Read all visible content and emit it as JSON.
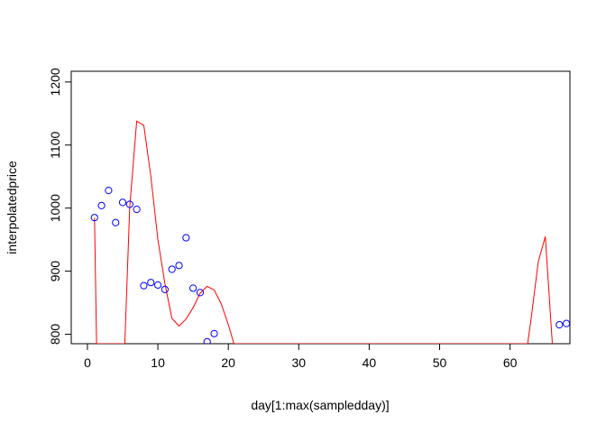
{
  "chart_data": {
    "type": "scatter",
    "xlabel": "day[1:max(sampledday)]",
    "ylabel": "interpolatedprice",
    "xlim": [
      -2.3,
      68.5
    ],
    "ylim": [
      785,
      1217
    ],
    "x_ticks": [
      0,
      10,
      20,
      30,
      40,
      50,
      60
    ],
    "y_ticks": [
      800,
      900,
      1000,
      1100,
      1200
    ],
    "grid": false,
    "points": {
      "color": "#0000ff",
      "marker": "open-circle",
      "x": [
        1,
        2,
        3,
        4,
        5,
        6,
        7,
        8,
        9,
        10,
        11,
        12,
        13,
        14,
        15,
        16,
        17,
        18,
        67,
        68
      ],
      "y": [
        985,
        1004,
        1028,
        977,
        1009,
        1006,
        998,
        877,
        882,
        878,
        871,
        903,
        909,
        953,
        873,
        866,
        788,
        801,
        815,
        817
      ]
    },
    "line": {
      "color": "#ff0000",
      "x": [
        1,
        1.3,
        5.3,
        6,
        7,
        8,
        9,
        10,
        11,
        12,
        13,
        14,
        15,
        16,
        17,
        18,
        19,
        20,
        20.8,
        62.5,
        63,
        64,
        65,
        66
      ],
      "y": [
        985,
        785,
        785,
        1000,
        1138,
        1131,
        1050,
        950,
        880,
        825,
        813,
        824,
        842,
        865,
        876,
        870,
        848,
        815,
        785,
        785,
        825,
        915,
        955,
        785
      ]
    }
  }
}
